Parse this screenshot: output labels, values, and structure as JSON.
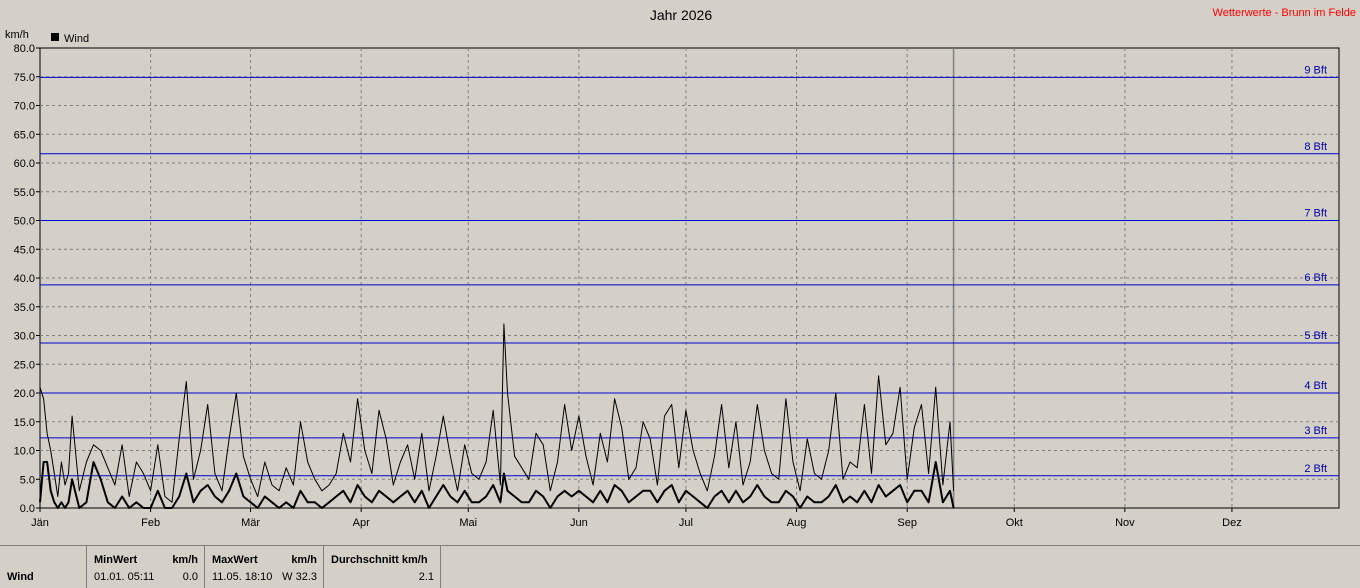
{
  "chart_data": {
    "type": "line",
    "title": "Jahr 2026",
    "source": "Wetterwerte - Brunn im Felde",
    "ylabel": "km/h",
    "ylim": [
      0,
      80
    ],
    "yticks": [
      "0.0",
      "5.0",
      "10.0",
      "15.0",
      "20.0",
      "25.0",
      "30.0",
      "35.0",
      "40.0",
      "45.0",
      "50.0",
      "55.0",
      "60.0",
      "65.0",
      "70.0",
      "75.0",
      "80.0"
    ],
    "months": [
      "Jän",
      "Feb",
      "Mär",
      "Apr",
      "Mai",
      "Jun",
      "Jul",
      "Aug",
      "Sep",
      "Okt",
      "Nov",
      "Dez"
    ],
    "grid": true,
    "legend": {
      "position": "top-left",
      "entries": [
        "Wind"
      ]
    },
    "data_end_day": 257,
    "beaufort": [
      {
        "label": "2 Bft",
        "value": 5.6
      },
      {
        "label": "3 Bft",
        "value": 12.2
      },
      {
        "label": "4 Bft",
        "value": 20.0
      },
      {
        "label": "5 Bft",
        "value": 28.7
      },
      {
        "label": "6 Bft",
        "value": 38.8
      },
      {
        "label": "7 Bft",
        "value": 50.0
      },
      {
        "label": "8 Bft",
        "value": 61.6
      },
      {
        "label": "9 Bft",
        "value": 74.9
      }
    ],
    "series": [
      {
        "name": "Wind",
        "description": "maximum",
        "x_day": [
          1,
          2,
          3,
          4,
          5,
          6,
          7,
          8,
          9,
          10,
          12,
          14,
          16,
          18,
          20,
          22,
          24,
          26,
          28,
          30,
          32,
          34,
          36,
          38,
          40,
          42,
          44,
          46,
          48,
          50,
          52,
          54,
          56,
          58,
          60,
          62,
          64,
          66,
          68,
          70,
          72,
          74,
          76,
          78,
          80,
          82,
          84,
          86,
          88,
          90,
          92,
          94,
          96,
          98,
          100,
          102,
          104,
          106,
          108,
          110,
          112,
          114,
          116,
          118,
          120,
          122,
          124,
          126,
          128,
          130,
          131,
          132,
          134,
          136,
          138,
          140,
          142,
          144,
          146,
          148,
          150,
          152,
          154,
          156,
          158,
          160,
          162,
          164,
          166,
          168,
          170,
          172,
          174,
          176,
          178,
          180,
          182,
          184,
          186,
          188,
          190,
          192,
          194,
          196,
          198,
          200,
          202,
          204,
          206,
          208,
          210,
          212,
          214,
          216,
          218,
          220,
          222,
          224,
          226,
          228,
          230,
          232,
          234,
          236,
          238,
          240,
          242,
          244,
          246,
          248,
          250,
          252,
          254,
          256,
          257
        ],
        "y": [
          21,
          19,
          13,
          10,
          6,
          2,
          8,
          4,
          6,
          16,
          3,
          8,
          11,
          10,
          7,
          4,
          11,
          2,
          8,
          6,
          3,
          11,
          2,
          1,
          12,
          22,
          5,
          10,
          18,
          6,
          3,
          12,
          20,
          9,
          5,
          2,
          8,
          4,
          3,
          7,
          4,
          15,
          8,
          5,
          3,
          4,
          6,
          13,
          8,
          19,
          10,
          6,
          17,
          12,
          4,
          8,
          11,
          5,
          13,
          3,
          9,
          16,
          9,
          3,
          11,
          6,
          5,
          8,
          17,
          4,
          32,
          20,
          9,
          7,
          5,
          13,
          11,
          3,
          8,
          18,
          10,
          16,
          9,
          4,
          13,
          8,
          19,
          14,
          5,
          7,
          15,
          12,
          4,
          16,
          18,
          7,
          17,
          10,
          6,
          3,
          9,
          18,
          7,
          15,
          4,
          8,
          18,
          10,
          6,
          5,
          19,
          8,
          3,
          12,
          6,
          5,
          10,
          20,
          5,
          8,
          7,
          18,
          6,
          23,
          11,
          13,
          21,
          5,
          14,
          18,
          6,
          21,
          4,
          15,
          3
        ],
        "color": "#000000"
      },
      {
        "name": "Wind",
        "description": "daily mean",
        "x_day": [
          1,
          2,
          3,
          4,
          5,
          6,
          7,
          8,
          9,
          10,
          12,
          14,
          16,
          18,
          20,
          22,
          24,
          26,
          28,
          30,
          32,
          34,
          36,
          38,
          40,
          42,
          44,
          46,
          48,
          50,
          52,
          54,
          56,
          58,
          60,
          62,
          64,
          66,
          68,
          70,
          72,
          74,
          76,
          78,
          80,
          82,
          84,
          86,
          88,
          90,
          92,
          94,
          96,
          98,
          100,
          102,
          104,
          106,
          108,
          110,
          112,
          114,
          116,
          118,
          120,
          122,
          124,
          126,
          128,
          130,
          131,
          132,
          134,
          136,
          138,
          140,
          142,
          144,
          146,
          148,
          150,
          152,
          154,
          156,
          158,
          160,
          162,
          164,
          166,
          168,
          170,
          172,
          174,
          176,
          178,
          180,
          182,
          184,
          186,
          188,
          190,
          192,
          194,
          196,
          198,
          200,
          202,
          204,
          206,
          208,
          210,
          212,
          214,
          216,
          218,
          220,
          222,
          224,
          226,
          228,
          230,
          232,
          234,
          236,
          238,
          240,
          242,
          244,
          246,
          248,
          250,
          252,
          254,
          256,
          257
        ],
        "y": [
          1,
          8,
          8,
          3,
          1,
          0,
          1,
          0,
          1,
          5,
          0,
          1,
          8,
          5,
          1,
          0,
          2,
          0,
          1,
          0,
          0,
          3,
          0,
          0,
          2,
          6,
          1,
          3,
          4,
          2,
          1,
          3,
          6,
          2,
          1,
          0,
          2,
          1,
          0,
          1,
          0,
          3,
          1,
          1,
          0,
          1,
          2,
          3,
          1,
          4,
          2,
          1,
          3,
          2,
          1,
          2,
          3,
          1,
          3,
          0,
          2,
          4,
          2,
          1,
          3,
          1,
          1,
          2,
          4,
          1,
          6,
          3,
          2,
          1,
          1,
          3,
          2,
          0,
          2,
          3,
          2,
          3,
          2,
          1,
          3,
          1,
          4,
          3,
          1,
          2,
          3,
          3,
          1,
          3,
          4,
          1,
          3,
          2,
          1,
          0,
          2,
          3,
          1,
          3,
          1,
          2,
          4,
          2,
          1,
          1,
          3,
          2,
          0,
          2,
          1,
          1,
          2,
          4,
          1,
          2,
          1,
          3,
          1,
          4,
          2,
          3,
          4,
          1,
          3,
          3,
          1,
          8,
          1,
          3,
          0
        ],
        "color": "#000000"
      }
    ]
  },
  "footer": {
    "label": "Wind",
    "min_header": "MinWert",
    "min_unit": "km/h",
    "min_time": "01.01.  05:11",
    "min_value": "0.0",
    "max_header": "MaxWert",
    "max_unit": "km/h",
    "max_time": "11.05.  18:10",
    "max_value": "W 32.3",
    "avg_header": "Durchschnitt km/h",
    "avg_value": "2.1"
  }
}
